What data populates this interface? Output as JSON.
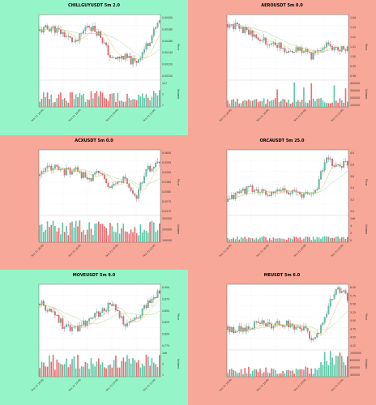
{
  "colors": {
    "positive_bg": "#96f5c8",
    "negative_bg": "#f7a898",
    "up": "#5cc6a5",
    "down": "#ec6b70",
    "ma_fast": "#e8b54a",
    "ma_slow": "#9bd68a"
  },
  "chart_data": [
    {
      "type": "candlestick",
      "title": "CHILLGUYUSDT 5m 2.0",
      "bg": "positive",
      "x_ticks": [
        "Nov 21 16:00",
        "Nov 21 18:00",
        "Nov 21 20:00",
        "Nov 21 22:00"
      ],
      "ylabel": "Price",
      "y_ticks": [
        "0.00300",
        "0.00280",
        "0.00260",
        "0.00240",
        "0.00220",
        "0.00200"
      ],
      "vol_label": "Volume",
      "vol_ticks": [
        "1e7",
        "2",
        "1"
      ],
      "seed": 11,
      "trend": [
        0.75,
        0.8,
        0.7,
        0.55,
        0.85,
        0.7,
        0.3,
        0.35,
        0.25,
        0.55,
        0.9
      ],
      "vol_pattern": "mixed"
    },
    {
      "type": "candlestick",
      "title": "AEROUSDT 5m 0.0",
      "bg": "negative",
      "x_ticks": [
        "Nov 21 16:00",
        "Nov 21 18:00",
        "Nov 21 20:00",
        "Nov 21 22:00"
      ],
      "ylabel": "Price",
      "y_ticks": [
        "1.04",
        "1.03",
        "1.02",
        "1.01",
        "1.00",
        "0.99",
        "0.98"
      ],
      "vol_label": "Volume",
      "vol_ticks": [
        "400000",
        "300000",
        "200000",
        "100000"
      ],
      "seed": 23,
      "trend": [
        0.85,
        0.8,
        0.7,
        0.6,
        0.55,
        0.45,
        0.5,
        0.35,
        0.55,
        0.45,
        0.5
      ],
      "vol_pattern": "spiky"
    },
    {
      "type": "candlestick",
      "title": "ACXUSDT 5m 0.0",
      "bg": "negative",
      "x_ticks": [
        "Nov 21 16:00",
        "Nov 21 18:00",
        "Nov 21 20:00",
        "Nov 21 22:00"
      ],
      "ylabel": "Price",
      "y_ticks": [
        "0.0600",
        "0.0595",
        "0.0590",
        "0.0585",
        "0.0580",
        "0.0575",
        "0.0570"
      ],
      "vol_label": "Volume",
      "vol_ticks": [
        "300000",
        "200000",
        "100000"
      ],
      "seed": 37,
      "trend": [
        0.6,
        0.75,
        0.65,
        0.7,
        0.55,
        0.65,
        0.4,
        0.55,
        0.25,
        0.7,
        0.8
      ],
      "vol_pattern": "dense"
    },
    {
      "type": "candlestick",
      "title": "ORCAUSDT 5m 25.0",
      "bg": "negative",
      "x_ticks": [
        "Nov 21 16:00",
        "Nov 21 18:00",
        "Nov 21 20:00",
        "Nov 21 22:00"
      ],
      "ylabel": "Price",
      "y_ticks": [
        "4.0",
        "3.8",
        "3.6",
        "3.4",
        "3.2",
        "3.0"
      ],
      "vol_label": "Volume",
      "vol_ticks": [
        "1e6",
        "4",
        "2",
        "0"
      ],
      "seed": 41,
      "trend": [
        0.2,
        0.35,
        0.4,
        0.35,
        0.3,
        0.4,
        0.35,
        0.3,
        0.35,
        0.85,
        0.75,
        0.8
      ],
      "vol_pattern": "low"
    },
    {
      "type": "candlestick",
      "title": "MOVEUSDT 5m 9.0",
      "bg": "positive",
      "x_ticks": [
        "Nov 21 16:00",
        "Nov 21 18:00",
        "Nov 21 20:00",
        "Nov 21 22:00"
      ],
      "ylabel": "Price",
      "y_ticks": [
        "0.900",
        "0.875",
        "0.850",
        "0.825",
        "0.800",
        "0.775"
      ],
      "vol_label": "Volume",
      "vol_ticks": [
        "1e6",
        "2",
        "1"
      ],
      "seed": 53,
      "trend": [
        0.7,
        0.6,
        0.35,
        0.3,
        0.45,
        0.55,
        0.7,
        0.4,
        0.45,
        0.7,
        0.9
      ],
      "vol_pattern": "dense"
    },
    {
      "type": "candlestick",
      "title": "MEUSDT 5m 6.0",
      "bg": "negative",
      "x_ticks": [
        "Nov 21 16:00",
        "Nov 21 18:00",
        "Nov 21 20:00",
        "Nov 21 22:00"
      ],
      "ylabel": "Price",
      "y_ticks": [
        "6.00",
        "5.75",
        "5.50",
        "5.25",
        "5.00",
        "4.75",
        "4.50",
        "4.25"
      ],
      "vol_label": "Volume",
      "vol_ticks": [
        "1000000",
        "800000",
        "600000",
        "400000"
      ],
      "seed": 67,
      "trend": [
        0.3,
        0.3,
        0.35,
        0.4,
        0.35,
        0.4,
        0.35,
        0.3,
        0.15,
        0.55,
        0.95,
        0.8
      ],
      "vol_pattern": "late"
    }
  ]
}
